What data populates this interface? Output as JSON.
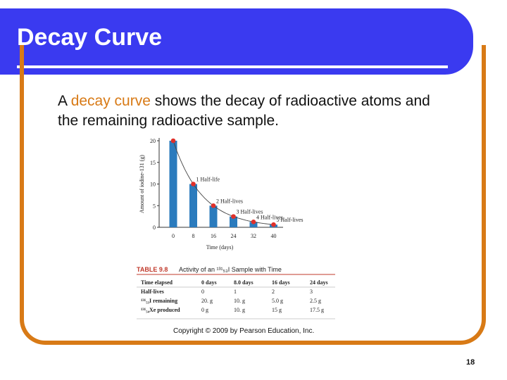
{
  "slide": {
    "title": "Decay Curve",
    "intro_prefix": "A ",
    "intro_highlight": "decay curve",
    "intro_rest": " shows the decay of radioactive atoms and the remaining radioactive sample.",
    "copyright": "Copyright © 2009 by Pearson Education, Inc.",
    "page_number": "18"
  },
  "colors": {
    "header": "#3a3af0",
    "accent": "#d87a16",
    "bar": "#2b7bbd",
    "point": "#e0302a"
  },
  "chart_data": {
    "type": "bar",
    "categories": [
      "0",
      "8",
      "16",
      "24",
      "32",
      "40"
    ],
    "values": [
      20,
      10,
      5,
      2.5,
      1.25,
      0.625
    ],
    "ylabel": "Amount of iodine-131 (g)",
    "xlabel": "Time (days)",
    "ylim": [
      0,
      20
    ],
    "yticks": [
      0,
      5,
      10,
      15,
      20
    ],
    "ytick_labels": [
      "0",
      "5",
      "10",
      "15",
      "20"
    ],
    "annotations": [
      "",
      "1 Half-life",
      "2 Half-lives",
      "3 Half-lives",
      "4 Half-lives",
      "5 Half-lives"
    ]
  },
  "table": {
    "caption_prefix": "TABLE 9.8",
    "caption": "Activity of an ¹³¹₅₃I Sample with Time",
    "rows": [
      {
        "label": "Time elapsed",
        "cells": [
          "0 days",
          "8.0 days",
          "16 days",
          "24 days"
        ]
      },
      {
        "label": "Half-lives",
        "cells": [
          "0",
          "1",
          "2",
          "3"
        ]
      },
      {
        "label": "¹³¹₅₃I remaining",
        "cells": [
          "20. g",
          "10. g",
          "5.0 g",
          "2.5 g"
        ]
      },
      {
        "label": "¹³¹₅₄Xe produced",
        "cells": [
          "0 g",
          "10. g",
          "15 g",
          "17.5 g"
        ]
      }
    ]
  }
}
